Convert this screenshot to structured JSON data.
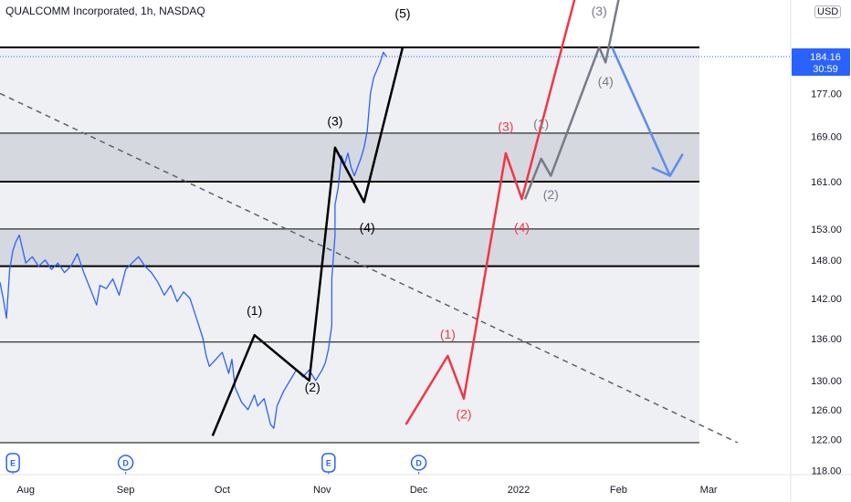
{
  "header": {
    "title": "QUALCOMM Incorporated, 1h, NASDAQ",
    "currency": "USD"
  },
  "price_tag": {
    "price": "184.16",
    "countdown": "30:59",
    "color": "#2962ff"
  },
  "colors": {
    "price_line": "#2962ff",
    "band_fill": "#d1d4dc",
    "wave_black": "#000000",
    "wave_red": "#f23645",
    "wave_gray": "#787b86",
    "projection_blue": "#5b8def",
    "trend_dashed": "#5d606b"
  },
  "events": [
    {
      "label": "E",
      "kind": "earnings",
      "x": "2021-07-28"
    },
    {
      "label": "D",
      "kind": "dividend",
      "x": "2021-09-01"
    },
    {
      "label": "E",
      "kind": "earnings",
      "x": "2021-11-03"
    },
    {
      "label": "D",
      "kind": "dividend",
      "x": "2021-12-01"
    }
  ],
  "chart_data": {
    "type": "line",
    "title": "QUALCOMM Incorporated, 1h, NASDAQ",
    "x_axis": {
      "type": "date",
      "range": [
        "2021-07-24",
        "2022-03-14"
      ],
      "ticks": [
        {
          "label": "Aug",
          "x": "2021-08-01"
        },
        {
          "label": "Sep",
          "x": "2021-09-01"
        },
        {
          "label": "Oct",
          "x": "2021-10-01"
        },
        {
          "label": "Nov",
          "x": "2021-11-01"
        },
        {
          "label": "Dec",
          "x": "2021-12-01"
        },
        {
          "label": "2022",
          "x": "2022-01-01"
        },
        {
          "label": "Feb",
          "x": "2022-02-01"
        },
        {
          "label": "Mar",
          "x": "2022-03-01"
        }
      ]
    },
    "y_axis": {
      "scale": "log",
      "range": [
        117.5,
        195.7
      ],
      "ticks": [
        "118.00",
        "122.00",
        "126.00",
        "130.00",
        "136.00",
        "142.00",
        "148.00",
        "153.00",
        "161.00",
        "169.00",
        "177.00",
        "184.16"
      ]
    },
    "grid": false,
    "series": [
      {
        "kind": "price",
        "color": "#2962ff",
        "points": [
          [
            "2021-07-24",
            144.5
          ],
          [
            "2021-07-25",
            142.0
          ],
          [
            "2021-07-26",
            139.0
          ],
          [
            "2021-07-27",
            146.5
          ],
          [
            "2021-07-28",
            149.5
          ],
          [
            "2021-07-29",
            151.0
          ],
          [
            "2021-07-30",
            152.0
          ],
          [
            "2021-08-01",
            147.5
          ],
          [
            "2021-08-03",
            148.5
          ],
          [
            "2021-08-05",
            147.0
          ],
          [
            "2021-08-07",
            148.0
          ],
          [
            "2021-08-09",
            146.5
          ],
          [
            "2021-08-11",
            147.5
          ],
          [
            "2021-08-13",
            146.0
          ],
          [
            "2021-08-15",
            147.0
          ],
          [
            "2021-08-17",
            149.0
          ],
          [
            "2021-08-19",
            146.0
          ],
          [
            "2021-08-21",
            143.5
          ],
          [
            "2021-08-23",
            141.0
          ],
          [
            "2021-08-24",
            144.0
          ],
          [
            "2021-08-26",
            143.5
          ],
          [
            "2021-08-28",
            145.0
          ],
          [
            "2021-08-30",
            142.5
          ],
          [
            "2021-09-01",
            146.5
          ],
          [
            "2021-09-03",
            147.5
          ],
          [
            "2021-09-05",
            148.5
          ],
          [
            "2021-09-07",
            147.0
          ],
          [
            "2021-09-09",
            146.0
          ],
          [
            "2021-09-11",
            144.5
          ],
          [
            "2021-09-13",
            142.5
          ],
          [
            "2021-09-15",
            144.0
          ],
          [
            "2021-09-17",
            141.5
          ],
          [
            "2021-09-19",
            143.0
          ],
          [
            "2021-09-21",
            142.0
          ],
          [
            "2021-09-23",
            139.0
          ],
          [
            "2021-09-25",
            136.0
          ],
          [
            "2021-09-26",
            133.5
          ],
          [
            "2021-09-27",
            132.0
          ],
          [
            "2021-09-29",
            133.0
          ],
          [
            "2021-10-01",
            134.0
          ],
          [
            "2021-10-03",
            131.0
          ],
          [
            "2021-10-04",
            133.0
          ],
          [
            "2021-10-05",
            129.0
          ],
          [
            "2021-10-07",
            127.0
          ],
          [
            "2021-10-09",
            126.0
          ],
          [
            "2021-10-11",
            128.0
          ],
          [
            "2021-10-12",
            126.5
          ],
          [
            "2021-10-14",
            127.5
          ],
          [
            "2021-10-16",
            124.0
          ],
          [
            "2021-10-17",
            123.5
          ],
          [
            "2021-10-18",
            126.5
          ],
          [
            "2021-10-20",
            128.5
          ],
          [
            "2021-10-22",
            130.0
          ],
          [
            "2021-10-24",
            131.5
          ],
          [
            "2021-10-26",
            130.5
          ],
          [
            "2021-10-28",
            131.5
          ],
          [
            "2021-10-30",
            130.0
          ],
          [
            "2021-11-01",
            131.5
          ],
          [
            "2021-11-02",
            132.5
          ],
          [
            "2021-11-03",
            134.5
          ],
          [
            "2021-11-04",
            138.0
          ],
          [
            "2021-11-04",
            145.0
          ],
          [
            "2021-11-05",
            152.0
          ],
          [
            "2021-11-05",
            157.0
          ],
          [
            "2021-11-06",
            160.0
          ],
          [
            "2021-11-07",
            165.5
          ],
          [
            "2021-11-08",
            164.0
          ],
          [
            "2021-11-09",
            166.0
          ],
          [
            "2021-11-10",
            163.5
          ],
          [
            "2021-11-11",
            162.0
          ],
          [
            "2021-11-12",
            163.5
          ],
          [
            "2021-11-13",
            165.0
          ],
          [
            "2021-11-14",
            167.0
          ],
          [
            "2021-11-15",
            170.0
          ],
          [
            "2021-11-16",
            177.0
          ],
          [
            "2021-11-17",
            180.0
          ],
          [
            "2021-11-18",
            181.5
          ],
          [
            "2021-11-19",
            183.0
          ],
          [
            "2021-11-20",
            185.0
          ],
          [
            "2021-11-21",
            184.16
          ]
        ]
      },
      {
        "kind": "wave-count",
        "color": "#000000",
        "points": [
          [
            "2021-09-28",
            122.5
          ],
          [
            "2021-10-11",
            136.5
          ],
          [
            "2021-10-28",
            130.0
          ],
          [
            "2021-11-05",
            167.0
          ],
          [
            "2021-11-14",
            157.5
          ],
          [
            "2021-11-26",
            186.0
          ]
        ]
      },
      {
        "kind": "wave-count",
        "color": "#f23645",
        "points": [
          [
            "2021-11-27",
            124.0
          ],
          [
            "2021-12-10",
            133.5
          ],
          [
            "2021-12-15",
            127.5
          ],
          [
            "2021-12-28",
            166.0
          ],
          [
            "2022-01-02",
            158.0
          ],
          [
            "2022-01-20",
            200.0
          ]
        ]
      },
      {
        "kind": "wave-count",
        "color": "#787b86",
        "points": [
          [
            "2022-01-03",
            158.0
          ],
          [
            "2022-01-08",
            165.0
          ],
          [
            "2022-01-11",
            162.0
          ],
          [
            "2022-01-26",
            186.0
          ],
          [
            "2022-01-28",
            183.0
          ],
          [
            "2022-02-02",
            199.0
          ]
        ]
      },
      {
        "kind": "projection",
        "color": "#5b8def",
        "points": [
          [
            "2022-01-30",
            186.0
          ],
          [
            "2022-02-17",
            162.0
          ]
        ]
      },
      {
        "kind": "trendline",
        "color": "#5d606b",
        "points": [
          [
            "2021-07-24",
            177.0
          ],
          [
            "2022-03-10",
            121.6
          ]
        ]
      }
    ],
    "levels": [
      {
        "value": 186.0,
        "style": "bold"
      },
      {
        "value": 169.6,
        "style": "thin"
      },
      {
        "value": 161.0,
        "style": "bold"
      },
      {
        "value": 153.0,
        "style": "thin"
      },
      {
        "value": 147.0,
        "style": "bold"
      },
      {
        "value": 135.5,
        "style": "thin"
      },
      {
        "value": 121.6,
        "style": "thin"
      }
    ],
    "bands": [
      {
        "from": 161.0,
        "to": 169.6,
        "shade": "dark"
      },
      {
        "from": 147.0,
        "to": 153.0,
        "shade": "dark"
      },
      {
        "from": 121.6,
        "to": 186.0,
        "shade": "light"
      }
    ],
    "annotations": [
      {
        "text": "(1)",
        "x": "2021-10-11",
        "y": 139.5,
        "color": "#000000"
      },
      {
        "text": "(2)",
        "x": "2021-10-29",
        "y": 128.5,
        "color": "#000000"
      },
      {
        "text": "(3)",
        "x": "2021-11-05",
        "y": 171.0,
        "color": "#000000"
      },
      {
        "text": "(4)",
        "x": "2021-11-15",
        "y": 152.5,
        "color": "#000000"
      },
      {
        "text": "(5)",
        "x": "2021-11-26",
        "y": 192.0,
        "color": "#000000"
      },
      {
        "text": "(1)",
        "x": "2021-12-10",
        "y": 136.0,
        "color": "#f23645"
      },
      {
        "text": "(2)",
        "x": "2021-12-15",
        "y": 124.8,
        "color": "#f23645"
      },
      {
        "text": "(3)",
        "x": "2021-12-28",
        "y": 170.0,
        "color": "#f23645"
      },
      {
        "text": "(4)",
        "x": "2022-01-02",
        "y": 152.5,
        "color": "#f23645"
      },
      {
        "text": "(1)",
        "x": "2022-01-08",
        "y": 170.5,
        "color": "#787b86"
      },
      {
        "text": "(2)",
        "x": "2022-01-11",
        "y": 158.0,
        "color": "#787b86"
      },
      {
        "text": "(3)",
        "x": "2022-01-26",
        "y": 192.5,
        "color": "#787b86"
      },
      {
        "text": "(4)",
        "x": "2022-01-28",
        "y": 178.5,
        "color": "#787b86"
      }
    ]
  }
}
